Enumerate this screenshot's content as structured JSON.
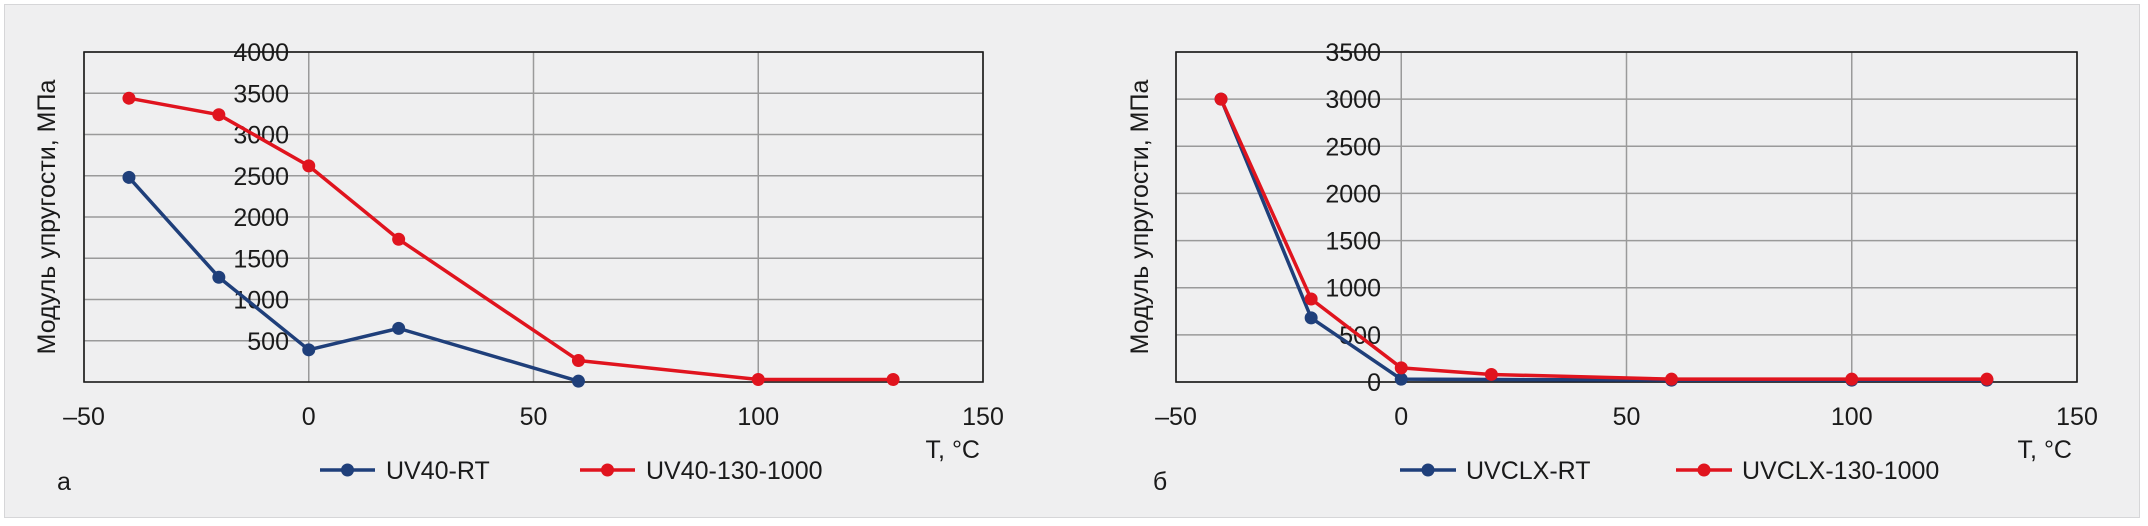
{
  "colors": {
    "rt": "#1f3f7a",
    "hot": "#e0141e",
    "grid": "#9a9a9a",
    "frame_bg": "#efeff0",
    "plot_bg": "#efeff0"
  },
  "chart_data": [
    {
      "type": "line",
      "panel_label": "а",
      "xlabel": "T, °C",
      "ylabel": "Модуль упругости, МПа",
      "xlim": [
        -50,
        150
      ],
      "ylim": [
        0,
        4000
      ],
      "xticks": [
        -50,
        0,
        50,
        100,
        150
      ],
      "xtick_labels": [
        "–50",
        "0",
        "50",
        "100",
        "150"
      ],
      "yticks": [
        500,
        1000,
        1500,
        2000,
        2500,
        3000,
        3500,
        4000
      ],
      "ytick_labels": [
        "500",
        "1000",
        "1500",
        "2000",
        "2500",
        "3000",
        "3500",
        "4000"
      ],
      "grid": true,
      "legend_position": "bottom",
      "series": [
        {
          "name": "UV40-RT",
          "color_key": "rt",
          "x": [
            -40,
            -20,
            0,
            20,
            60
          ],
          "y": [
            2480,
            1270,
            390,
            650,
            10
          ]
        },
        {
          "name": "UV40-130-1000",
          "color_key": "hot",
          "x": [
            -40,
            -20,
            0,
            20,
            60,
            100,
            130
          ],
          "y": [
            3440,
            3240,
            2620,
            1730,
            260,
            30,
            30
          ]
        }
      ]
    },
    {
      "type": "line",
      "panel_label": "б",
      "xlabel": "T, °C",
      "ylabel": "Модуль упругости, МПа",
      "xlim": [
        -50,
        150
      ],
      "ylim": [
        0,
        3500
      ],
      "xticks": [
        -50,
        0,
        50,
        100,
        150
      ],
      "xtick_labels": [
        "–50",
        "0",
        "50",
        "100",
        "150"
      ],
      "yticks": [
        0,
        500,
        1000,
        1500,
        2000,
        2500,
        3000,
        3500
      ],
      "ytick_labels": [
        "0",
        "500",
        "1000",
        "1500",
        "2000",
        "2500",
        "3000",
        "3500"
      ],
      "grid": true,
      "legend_position": "bottom",
      "series": [
        {
          "name": "UVCLX-RT",
          "color_key": "rt",
          "x": [
            -40,
            -20,
            0,
            60,
            100,
            130
          ],
          "y": [
            3000,
            680,
            30,
            20,
            20,
            20
          ]
        },
        {
          "name": "UVCLX-130-1000",
          "color_key": "hot",
          "x": [
            -40,
            -20,
            0,
            20,
            60,
            100,
            130
          ],
          "y": [
            3000,
            880,
            150,
            80,
            30,
            30,
            30
          ]
        }
      ]
    }
  ]
}
